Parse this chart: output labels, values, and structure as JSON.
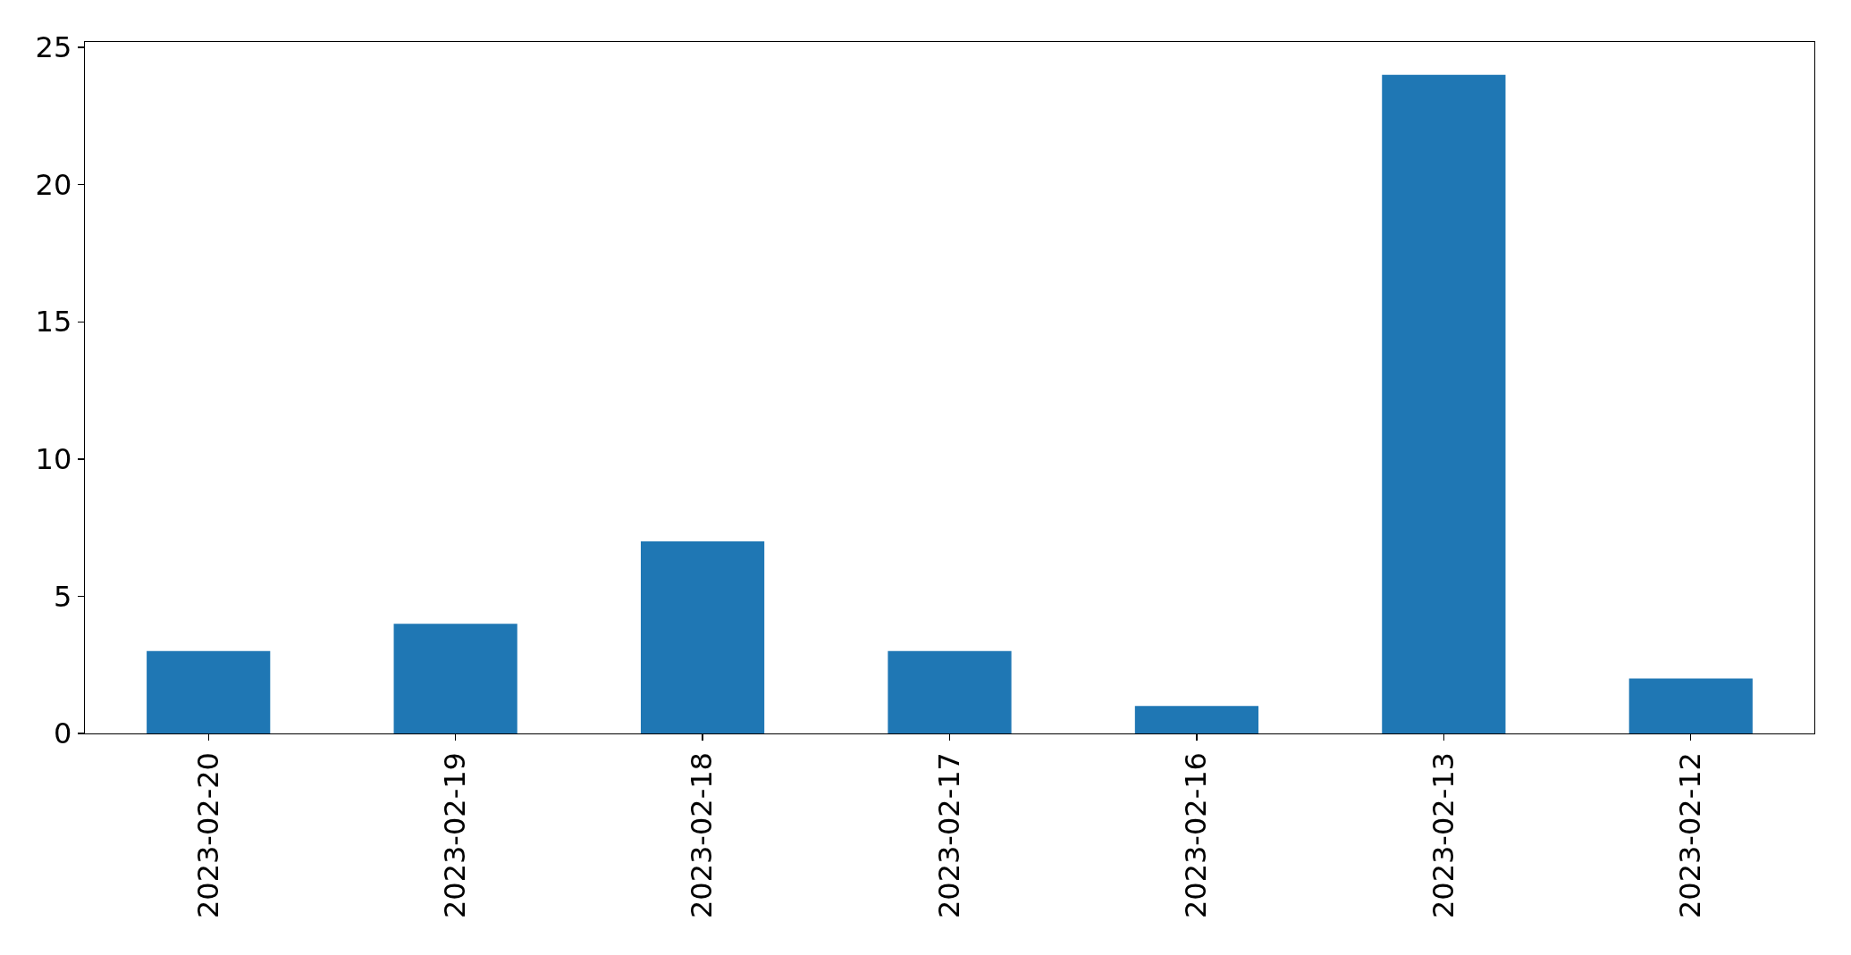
{
  "chart_data": {
    "type": "bar",
    "categories": [
      "2023-02-20",
      "2023-02-19",
      "2023-02-18",
      "2023-02-17",
      "2023-02-16",
      "2023-02-13",
      "2023-02-12"
    ],
    "values": [
      3,
      4,
      7,
      3,
      1,
      24,
      2
    ],
    "color": "#1f77b4",
    "ylim": [
      0,
      25.2
    ],
    "yticks": [
      0,
      5,
      10,
      15,
      20,
      25
    ]
  }
}
